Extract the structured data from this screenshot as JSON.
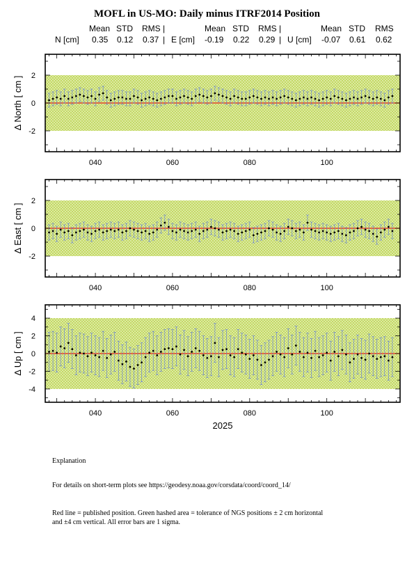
{
  "title": "MOFL in US-MO: Daily minus ITRF2014 Position",
  "stats": {
    "headers": {
      "mean": "Mean",
      "std": "STD",
      "rms": "RMS |",
      "rms_last": "RMS"
    },
    "north": {
      "label": "N [cm]",
      "mean": "0.35",
      "std": "0.12",
      "rms": "0.37",
      "sep": "|"
    },
    "east": {
      "label": "E [cm]",
      "mean": "-0.19",
      "std": "0.22",
      "rms": "0.29",
      "sep": "|"
    },
    "up": {
      "label": "U [cm]",
      "mean": "-0.07",
      "std": "0.61",
      "rms": "0.62"
    }
  },
  "xlabel": "2025",
  "explanation": {
    "heading": "Explanation",
    "details": "For details on short-term plots see https://geodesy.noaa.gov/corsdata/coord/coord_14/",
    "line1": "Red line = published position.  Green hashed area = tolerance of NGS positions ± 2 cm horizontal",
    "line2": "and ±4 cm vertical.  All error bars are 1 sigma."
  },
  "colors": {
    "tolerance": "#c8dc5a",
    "published": "#e8281e",
    "errorbar": "#5a78dc",
    "point": "#000000"
  },
  "chart_data": [
    {
      "type": "scatter",
      "ylabel": "Δ North  [ cm ]",
      "xlim": [
        27,
        119
      ],
      "ylim": [
        -3.5,
        3.5
      ],
      "xticks": [
        40,
        60,
        80,
        100
      ],
      "xticklabels": [
        "040",
        "060",
        "080",
        "100"
      ],
      "yticks": [
        -2,
        0,
        2
      ],
      "tolerance": [
        -2,
        2
      ],
      "published": 0,
      "x": [
        28,
        29,
        30,
        31,
        32,
        33,
        34,
        35,
        36,
        37,
        38,
        39,
        40,
        41,
        42,
        43,
        44,
        45,
        46,
        47,
        48,
        49,
        50,
        51,
        52,
        53,
        54,
        55,
        56,
        57,
        58,
        59,
        60,
        61,
        62,
        63,
        64,
        65,
        66,
        67,
        68,
        69,
        70,
        71,
        72,
        73,
        74,
        75,
        76,
        77,
        78,
        79,
        80,
        81,
        82,
        83,
        84,
        85,
        86,
        87,
        88,
        89,
        90,
        91,
        92,
        93,
        94,
        95,
        96,
        97,
        98,
        99,
        100,
        101,
        102,
        103,
        104,
        105,
        106,
        107,
        108,
        109,
        110,
        111,
        112,
        113,
        114,
        115,
        116,
        117
      ],
      "y": [
        0.2,
        0.3,
        0.4,
        0.3,
        0.5,
        0.3,
        0.4,
        0.5,
        0.6,
        0.5,
        0.4,
        0.5,
        0.3,
        0.6,
        0.7,
        0.4,
        0.2,
        0.3,
        0.4,
        0.4,
        0.3,
        0.3,
        0.5,
        0.4,
        0.2,
        0.3,
        0.4,
        0.3,
        0.2,
        0.3,
        0.4,
        0.5,
        0.5,
        0.3,
        0.4,
        0.5,
        0.4,
        0.3,
        0.5,
        0.6,
        0.5,
        0.4,
        0.5,
        0.7,
        0.6,
        0.5,
        0.4,
        0.3,
        0.5,
        0.4,
        0.3,
        0.3,
        0.4,
        0.5,
        0.4,
        0.3,
        0.4,
        0.3,
        0.4,
        0.3,
        0.4,
        0.5,
        0.4,
        0.3,
        0.2,
        0.3,
        0.4,
        0.3,
        0.4,
        0.3,
        0.2,
        0.3,
        0.4,
        0.3,
        0.5,
        0.4,
        0.3,
        0.2,
        0.3,
        0.4,
        0.3,
        0.4,
        0.5,
        0.4,
        0.3,
        0.4,
        0.3,
        0.2,
        0.4,
        0.5
      ],
      "err": [
        0.5,
        0.5,
        0.5,
        0.5,
        0.5,
        0.5,
        0.5,
        0.5,
        0.5,
        0.5,
        0.5,
        0.5,
        0.5,
        0.5,
        0.5,
        0.5,
        0.5,
        0.5,
        0.5,
        0.5,
        0.5,
        0.5,
        0.5,
        0.5,
        0.5,
        0.5,
        0.5,
        0.5,
        0.5,
        0.5,
        0.5,
        0.5,
        0.5,
        0.5,
        0.5,
        0.5,
        0.5,
        0.5,
        0.5,
        0.5,
        0.5,
        0.5,
        0.5,
        0.5,
        0.5,
        0.5,
        0.5,
        0.5,
        0.5,
        0.5,
        0.5,
        0.5,
        0.5,
        0.5,
        0.5,
        0.5,
        0.5,
        0.5,
        0.5,
        0.5,
        0.5,
        0.5,
        0.5,
        0.5,
        0.5,
        0.5,
        0.5,
        0.5,
        0.5,
        0.5,
        0.5,
        0.5,
        0.5,
        0.5,
        0.5,
        0.5,
        0.5,
        0.5,
        0.5,
        0.5,
        0.5,
        0.5,
        0.5,
        0.5,
        0.5,
        0.5,
        0.5,
        0.5,
        0.5,
        0.5
      ]
    },
    {
      "type": "scatter",
      "ylabel": "Δ East  [ cm ]",
      "xlim": [
        27,
        119
      ],
      "ylim": [
        -3.5,
        3.5
      ],
      "xticks": [
        40,
        60,
        80,
        100
      ],
      "xticklabels": [
        "040",
        "060",
        "080",
        "100"
      ],
      "yticks": [
        -2,
        0,
        2
      ],
      "tolerance": [
        -2,
        2
      ],
      "published": 0,
      "x": [
        28,
        29,
        30,
        31,
        32,
        33,
        34,
        35,
        36,
        37,
        38,
        39,
        40,
        41,
        42,
        43,
        44,
        45,
        46,
        47,
        48,
        49,
        50,
        51,
        52,
        53,
        54,
        55,
        56,
        57,
        58,
        59,
        60,
        61,
        62,
        63,
        64,
        65,
        66,
        67,
        68,
        69,
        70,
        71,
        72,
        73,
        74,
        75,
        76,
        77,
        78,
        79,
        80,
        81,
        82,
        83,
        84,
        85,
        86,
        87,
        88,
        89,
        90,
        91,
        92,
        93,
        94,
        95,
        96,
        97,
        98,
        99,
        100,
        101,
        102,
        103,
        104,
        105,
        106,
        107,
        108,
        109,
        110,
        111,
        112,
        113,
        114,
        115,
        116,
        117
      ],
      "y": [
        -0.3,
        -0.2,
        -0.4,
        -0.1,
        -0.3,
        -0.2,
        -0.5,
        -0.3,
        -0.2,
        -0.1,
        -0.3,
        -0.4,
        -0.2,
        -0.1,
        -0.3,
        -0.2,
        -0.1,
        -0.2,
        -0.1,
        -0.3,
        -0.2,
        0.0,
        -0.1,
        -0.2,
        -0.3,
        -0.2,
        -0.4,
        -0.3,
        -0.1,
        0.2,
        0.4,
        0.1,
        -0.2,
        -0.3,
        -0.1,
        -0.2,
        -0.3,
        -0.2,
        -0.1,
        -0.4,
        -0.2,
        -0.1,
        0.1,
        0.0,
        -0.1,
        -0.3,
        -0.2,
        -0.1,
        -0.2,
        -0.4,
        -0.3,
        -0.2,
        -0.1,
        -0.5,
        -0.4,
        -0.3,
        -0.2,
        0.0,
        -0.1,
        -0.3,
        -0.4,
        -0.2,
        0.1,
        0.0,
        -0.2,
        -0.1,
        -0.3,
        0.4,
        -0.1,
        -0.2,
        -0.3,
        -0.2,
        -0.3,
        -0.4,
        -0.3,
        -0.2,
        -0.4,
        -0.5,
        -0.3,
        -0.2,
        0.0,
        0.1,
        -0.1,
        -0.2,
        -0.4,
        -0.6,
        -0.3,
        -0.1,
        0.1,
        -0.2
      ],
      "err": [
        0.55,
        0.55,
        0.55,
        0.55,
        0.55,
        0.55,
        0.55,
        0.55,
        0.55,
        0.55,
        0.55,
        0.55,
        0.55,
        0.55,
        0.55,
        0.55,
        0.55,
        0.55,
        0.55,
        0.55,
        0.55,
        0.55,
        0.55,
        0.55,
        0.55,
        0.55,
        0.55,
        0.55,
        0.55,
        0.55,
        0.55,
        0.55,
        0.55,
        0.55,
        0.55,
        0.55,
        0.55,
        0.55,
        0.55,
        0.55,
        0.55,
        0.55,
        0.55,
        0.55,
        0.55,
        0.55,
        0.55,
        0.55,
        0.55,
        0.55,
        0.55,
        0.55,
        0.55,
        0.55,
        0.55,
        0.55,
        0.55,
        0.55,
        0.55,
        0.55,
        0.55,
        0.55,
        0.55,
        0.55,
        0.55,
        0.55,
        0.55,
        0.55,
        0.55,
        0.55,
        0.55,
        0.55,
        0.55,
        0.55,
        0.55,
        0.55,
        0.55,
        0.55,
        0.55,
        0.55,
        0.55,
        0.55,
        0.55,
        0.55,
        0.55,
        0.55,
        0.55,
        0.55,
        0.55,
        0.55
      ]
    },
    {
      "type": "scatter",
      "ylabel": "Δ Up  [ cm ]",
      "xlim": [
        27,
        119
      ],
      "ylim": [
        -5.5,
        5.5
      ],
      "xticks": [
        40,
        60,
        80,
        100
      ],
      "xticklabels": [
        "040",
        "060",
        "080",
        "100"
      ],
      "yticks": [
        -4,
        -2,
        0,
        2,
        4
      ],
      "tolerance": [
        -4,
        4
      ],
      "published": 0,
      "x": [
        28,
        29,
        30,
        31,
        32,
        33,
        34,
        35,
        36,
        37,
        38,
        39,
        40,
        41,
        42,
        43,
        44,
        45,
        46,
        47,
        48,
        49,
        50,
        51,
        52,
        53,
        54,
        55,
        56,
        57,
        58,
        59,
        60,
        61,
        62,
        63,
        64,
        65,
        66,
        67,
        68,
        69,
        70,
        71,
        72,
        73,
        74,
        75,
        76,
        77,
        78,
        79,
        80,
        81,
        82,
        83,
        84,
        85,
        86,
        87,
        88,
        89,
        90,
        91,
        92,
        93,
        94,
        95,
        96,
        97,
        98,
        99,
        100,
        101,
        102,
        103,
        104,
        105,
        106,
        107,
        108,
        109,
        110,
        111,
        112,
        113,
        114,
        115,
        116,
        117
      ],
      "y": [
        0.2,
        0.3,
        0.1,
        0.8,
        0.6,
        1.2,
        0.5,
        -0.2,
        0.1,
        0.0,
        -0.3,
        0.1,
        -0.2,
        -0.4,
        0.3,
        -0.5,
        -0.1,
        0.2,
        -0.8,
        -1.2,
        -0.9,
        -1.5,
        -1.7,
        -1.3,
        -1.0,
        -0.4,
        0.1,
        0.3,
        -0.2,
        0.2,
        0.5,
        0.6,
        0.5,
        0.8,
        -0.1,
        0.4,
        -0.3,
        0.2,
        0.6,
        0.3,
        -0.2,
        -0.5,
        -0.3,
        1.2,
        -0.4,
        0.4,
        0.5,
        -0.2,
        -0.4,
        0.5,
        0.1,
        -0.1,
        -0.6,
        -0.2,
        -0.7,
        -1.3,
        -1.0,
        -0.7,
        -0.3,
        0.2,
        -0.1,
        -0.4,
        0.6,
        -0.1,
        0.9,
        0.2,
        -0.4,
        0.1,
        -0.5,
        0.3,
        -0.4,
        -0.2,
        0.1,
        -0.8,
        0.2,
        -0.3,
        0.4,
        -0.1,
        -1.0,
        -0.6,
        -0.1,
        -0.5,
        -0.7,
        0.0,
        -0.3,
        -0.6,
        -0.4,
        -0.3,
        -0.8,
        -0.4
      ],
      "err": [
        2.2,
        2.2,
        2.2,
        2.2,
        2.2,
        2.2,
        2.2,
        2.2,
        2.2,
        2.2,
        2.2,
        2.2,
        2.2,
        2.2,
        2.2,
        2.2,
        2.2,
        2.2,
        2.2,
        2.2,
        2.2,
        2.2,
        2.2,
        2.2,
        2.2,
        2.2,
        2.2,
        2.2,
        2.2,
        2.2,
        2.2,
        2.2,
        2.2,
        2.2,
        2.2,
        2.2,
        2.2,
        2.2,
        2.2,
        2.2,
        2.2,
        2.2,
        2.2,
        2.2,
        2.2,
        2.2,
        2.2,
        2.2,
        2.2,
        2.2,
        2.2,
        2.2,
        2.2,
        2.2,
        2.2,
        2.2,
        2.2,
        2.2,
        2.2,
        2.2,
        2.2,
        2.2,
        2.2,
        2.2,
        2.2,
        2.2,
        2.2,
        2.2,
        2.2,
        2.2,
        2.2,
        2.2,
        2.2,
        2.2,
        2.2,
        2.2,
        2.2,
        2.2,
        2.2,
        2.2,
        2.2,
        2.2,
        2.2,
        2.2,
        2.2,
        2.2,
        2.2,
        2.2,
        2.2,
        2.2
      ]
    }
  ]
}
